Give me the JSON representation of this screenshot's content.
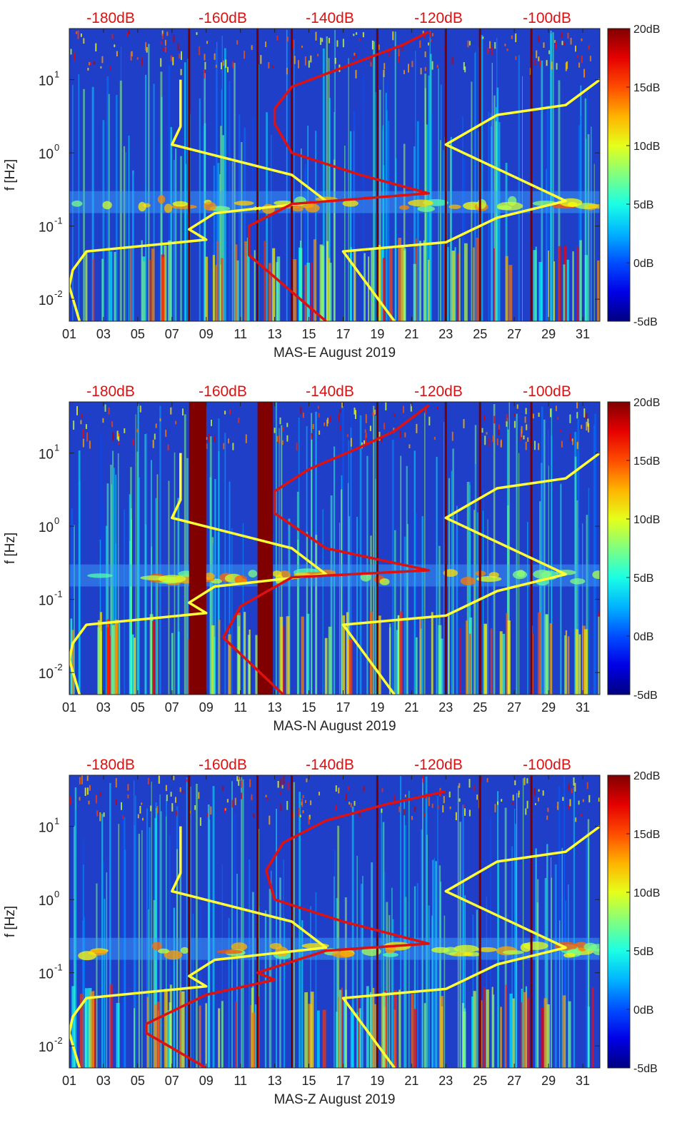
{
  "chart_data": [
    {
      "type": "heatmap",
      "title": "",
      "xlabel": "MAS-E August 2019",
      "ylabel": "f [Hz]",
      "x_ticks": [
        "01",
        "03",
        "05",
        "07",
        "09",
        "11",
        "13",
        "15",
        "17",
        "19",
        "21",
        "23",
        "25",
        "27",
        "29",
        "31"
      ],
      "y_scale": "log",
      "ylim": [
        0.005,
        50
      ],
      "y_ticks": [
        {
          "v": 0.01,
          "base": "10",
          "exp": "-2"
        },
        {
          "v": 0.1,
          "base": "10",
          "exp": "-1"
        },
        {
          "v": 1,
          "base": "10",
          "exp": "0"
        },
        {
          "v": 10,
          "base": "10",
          "exp": "1"
        }
      ],
      "xlim": [
        1,
        32
      ],
      "top_axis_ticks": [
        "-180dB",
        "-160dB",
        "-140dB",
        "-120dB",
        "-100dB"
      ],
      "colorbar": {
        "range": [
          -5,
          20
        ],
        "ticks": [
          "20dB",
          "15dB",
          "10dB",
          "5dB",
          "0dB",
          "-5dB"
        ],
        "colormap": "jet"
      },
      "dark_columns": [
        8,
        12,
        14,
        19,
        23,
        25,
        28
      ],
      "wide_dark_columns": [],
      "series": [
        {
          "color": "#ffff33",
          "points": [
            [
              1.6,
              0.005
            ],
            [
              1.0,
              0.015
            ],
            [
              1.2,
              0.025
            ],
            [
              2.0,
              0.045
            ],
            [
              9.0,
              0.065
            ],
            [
              8.0,
              0.09
            ],
            [
              9.5,
              0.15
            ],
            [
              16.0,
              0.22
            ],
            [
              14.0,
              0.5
            ],
            [
              7.0,
              1.3
            ],
            [
              7.5,
              2.3
            ],
            [
              7.5,
              10
            ]
          ]
        },
        {
          "color": "#ffff33",
          "points": [
            [
              20.0,
              0.005
            ],
            [
              17.0,
              0.045
            ],
            [
              23.0,
              0.06
            ],
            [
              26.0,
              0.13
            ],
            [
              30.0,
              0.22
            ],
            [
              23.0,
              1.3
            ],
            [
              26.0,
              3.3
            ],
            [
              30.0,
              4.5
            ],
            [
              32.0,
              10
            ]
          ]
        },
        {
          "color": "#dd1111",
          "points": [
            [
              16.0,
              0.005
            ],
            [
              11.5,
              0.04
            ],
            [
              11.5,
              0.1
            ],
            [
              14.0,
              0.2
            ],
            [
              22.0,
              0.28
            ],
            [
              18.0,
              0.5
            ],
            [
              14.0,
              1.0
            ],
            [
              13.0,
              2.5
            ],
            [
              13.0,
              4.0
            ],
            [
              14.0,
              8.0
            ],
            [
              16.0,
              12.0
            ],
            [
              18.5,
              20.0
            ],
            [
              20.5,
              30.0
            ],
            [
              22.0,
              45.0
            ]
          ]
        }
      ]
    },
    {
      "type": "heatmap",
      "title": "",
      "xlabel": "MAS-N August 2019",
      "ylabel": "f [Hz]",
      "x_ticks": [
        "01",
        "03",
        "05",
        "07",
        "09",
        "11",
        "13",
        "15",
        "17",
        "19",
        "21",
        "23",
        "25",
        "27",
        "29",
        "31"
      ],
      "y_scale": "log",
      "ylim": [
        0.005,
        50
      ],
      "y_ticks": [
        {
          "v": 0.01,
          "base": "10",
          "exp": "-2"
        },
        {
          "v": 0.1,
          "base": "10",
          "exp": "-1"
        },
        {
          "v": 1,
          "base": "10",
          "exp": "0"
        },
        {
          "v": 10,
          "base": "10",
          "exp": "1"
        }
      ],
      "xlim": [
        1,
        32
      ],
      "top_axis_ticks": [
        "-180dB",
        "-160dB",
        "-140dB",
        "-120dB",
        "-100dB"
      ],
      "colorbar": {
        "range": [
          -5,
          20
        ],
        "ticks": [
          "20dB",
          "15dB",
          "10dB",
          "5dB",
          "0dB",
          "-5dB"
        ],
        "colormap": "jet"
      },
      "dark_columns": [
        19,
        23,
        25,
        28
      ],
      "wide_dark_columns": [
        [
          8.0,
          9.0
        ],
        [
          12.0,
          12.9
        ]
      ],
      "series": [
        {
          "color": "#ffff33",
          "points": [
            [
              1.6,
              0.005
            ],
            [
              1.0,
              0.015
            ],
            [
              1.2,
              0.025
            ],
            [
              2.0,
              0.045
            ],
            [
              9.0,
              0.065
            ],
            [
              8.0,
              0.09
            ],
            [
              9.5,
              0.15
            ],
            [
              16.0,
              0.22
            ],
            [
              14.0,
              0.5
            ],
            [
              7.0,
              1.3
            ],
            [
              7.5,
              2.3
            ],
            [
              7.5,
              10
            ]
          ]
        },
        {
          "color": "#ffff33",
          "points": [
            [
              20.0,
              0.005
            ],
            [
              17.0,
              0.045
            ],
            [
              23.0,
              0.06
            ],
            [
              26.0,
              0.13
            ],
            [
              30.0,
              0.22
            ],
            [
              23.0,
              1.3
            ],
            [
              26.0,
              3.3
            ],
            [
              30.0,
              4.5
            ],
            [
              32.0,
              10
            ]
          ]
        },
        {
          "color": "#dd1111",
          "points": [
            [
              13.5,
              0.005
            ],
            [
              10.0,
              0.03
            ],
            [
              11.0,
              0.08
            ],
            [
              14.0,
              0.2
            ],
            [
              22.0,
              0.25
            ],
            [
              16.0,
              0.5
            ],
            [
              13.0,
              1.5
            ],
            [
              13.0,
              3.0
            ],
            [
              15.0,
              6.0
            ],
            [
              18.0,
              12.0
            ],
            [
              20.0,
              20.0
            ],
            [
              22.0,
              45.0
            ]
          ]
        }
      ]
    },
    {
      "type": "heatmap",
      "title": "",
      "xlabel": "MAS-Z August 2019",
      "ylabel": "f [Hz]",
      "x_ticks": [
        "01",
        "03",
        "05",
        "07",
        "09",
        "11",
        "13",
        "15",
        "17",
        "19",
        "21",
        "23",
        "25",
        "27",
        "29",
        "31"
      ],
      "y_scale": "log",
      "ylim": [
        0.005,
        50
      ],
      "y_ticks": [
        {
          "v": 0.01,
          "base": "10",
          "exp": "-2"
        },
        {
          "v": 0.1,
          "base": "10",
          "exp": "-1"
        },
        {
          "v": 1,
          "base": "10",
          "exp": "0"
        },
        {
          "v": 10,
          "base": "10",
          "exp": "1"
        }
      ],
      "xlim": [
        1,
        32
      ],
      "top_axis_ticks": [
        "-180dB",
        "-160dB",
        "-140dB",
        "-120dB",
        "-100dB"
      ],
      "colorbar": {
        "range": [
          -5,
          20
        ],
        "ticks": [
          "20dB",
          "15dB",
          "10dB",
          "5dB",
          "0dB",
          "-5dB"
        ],
        "colormap": "jet"
      },
      "dark_columns": [
        8,
        12,
        14,
        19,
        25,
        28
      ],
      "wide_dark_columns": [],
      "series": [
        {
          "color": "#ffff33",
          "points": [
            [
              1.6,
              0.005
            ],
            [
              1.0,
              0.015
            ],
            [
              1.2,
              0.025
            ],
            [
              2.0,
              0.045
            ],
            [
              9.0,
              0.065
            ],
            [
              8.0,
              0.09
            ],
            [
              9.5,
              0.15
            ],
            [
              16.0,
              0.22
            ],
            [
              14.0,
              0.5
            ],
            [
              7.0,
              1.3
            ],
            [
              7.5,
              2.3
            ],
            [
              7.5,
              10
            ]
          ]
        },
        {
          "color": "#ffff33",
          "points": [
            [
              20.0,
              0.005
            ],
            [
              17.0,
              0.045
            ],
            [
              23.0,
              0.06
            ],
            [
              26.0,
              0.13
            ],
            [
              30.0,
              0.22
            ],
            [
              23.0,
              1.3
            ],
            [
              26.0,
              3.3
            ],
            [
              30.0,
              4.5
            ],
            [
              32.0,
              10
            ]
          ]
        },
        {
          "color": "#dd1111",
          "points": [
            [
              9.0,
              0.005
            ],
            [
              5.5,
              0.015
            ],
            [
              5.5,
              0.02
            ],
            [
              9.0,
              0.05
            ],
            [
              13.0,
              0.08
            ],
            [
              12.0,
              0.1
            ],
            [
              16.0,
              0.2
            ],
            [
              22.0,
              0.25
            ],
            [
              17.0,
              0.5
            ],
            [
              13.0,
              1.0
            ],
            [
              12.5,
              2.5
            ],
            [
              13.5,
              6.0
            ],
            [
              16.0,
              12.0
            ],
            [
              19.5,
              20.0
            ],
            [
              23.0,
              30.0
            ]
          ]
        }
      ]
    }
  ]
}
